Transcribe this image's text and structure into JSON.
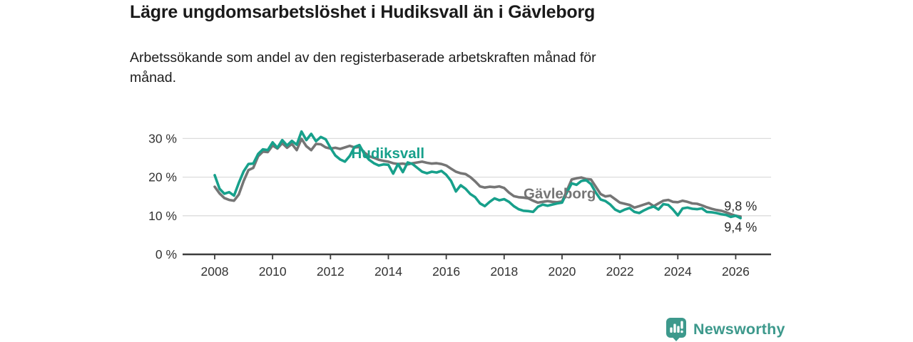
{
  "header": {
    "title": "Lägre ungdomsarbetslöshet i Hudiksvall än i Gävleborg",
    "subtitle_lines": [
      "Arbetssökande som andel av den registerbaserade arbetskraften månad för",
      "månad."
    ]
  },
  "footer": {
    "brand": "Newsworthy",
    "brand_color": "#3d998c",
    "logo_icon": "bar-chart-speech-bubble-icon"
  },
  "chart_data": {
    "type": "line",
    "title": "Lägre ungdomsarbetslöshet i Hudiksvall än i Gävleborg",
    "subtitle": "Arbetssökande som andel av den registerbaserade arbetskraften månad för månad.",
    "xlabel": "",
    "ylabel": "",
    "grid": "horizontal",
    "legend_position": "inline-labels",
    "x_start_year": 2008.0,
    "x_step_years": 0.166667,
    "xlim": [
      2006.9,
      2027.2
    ],
    "ylim": [
      0,
      33.5
    ],
    "x_ticks": [
      2008,
      2010,
      2012,
      2014,
      2016,
      2018,
      2020,
      2022,
      2024,
      2026
    ],
    "x_tick_labels": [
      "2008",
      "2010",
      "2012",
      "2014",
      "2016",
      "2018",
      "2020",
      "2022",
      "2024",
      "2026"
    ],
    "y_ticks": [
      0,
      10,
      20,
      30
    ],
    "y_tick_labels": [
      "0 %",
      "10 %",
      "20 %",
      "30 %"
    ],
    "series": [
      {
        "name": "Gävleborg",
        "color": "#757575",
        "last_value_label": "9,8 %",
        "values": [
          17.5,
          15.8,
          14.6,
          14.1,
          13.9,
          15.5,
          19.0,
          21.8,
          22.4,
          25.4,
          26.6,
          26.5,
          28.2,
          27.4,
          28.8,
          27.6,
          28.6,
          27.0,
          29.9,
          28.0,
          27.0,
          28.6,
          28.5,
          27.7,
          27.4,
          27.6,
          27.3,
          27.7,
          28.1,
          27.7,
          27.8,
          26.4,
          25.4,
          25.0,
          24.5,
          24.2,
          24.0,
          23.6,
          23.4,
          23.5,
          23.3,
          23.6,
          23.8,
          24.0,
          23.7,
          23.5,
          23.6,
          23.4,
          23.0,
          22.2,
          21.4,
          21.0,
          20.8,
          20.0,
          18.9,
          17.6,
          17.3,
          17.5,
          17.4,
          17.6,
          17.2,
          16.0,
          15.1,
          14.8,
          14.7,
          14.5,
          13.9,
          13.4,
          13.6,
          13.8,
          13.6,
          13.5,
          13.7,
          16.5,
          19.4,
          19.7,
          19.9,
          19.5,
          19.4,
          17.5,
          15.6,
          15.0,
          15.2,
          14.3,
          13.4,
          13.1,
          12.8,
          12.1,
          12.5,
          12.9,
          13.3,
          12.5,
          13.2,
          13.9,
          14.1,
          13.6,
          13.5,
          13.9,
          13.6,
          13.2,
          13.1,
          12.7,
          12.2,
          11.8,
          11.5,
          11.3,
          10.9,
          10.4,
          10.0,
          9.8
        ]
      },
      {
        "name": "Hudiksvall",
        "color": "#17a08b",
        "last_value_label": "9,4 %",
        "values": [
          20.5,
          17.0,
          15.7,
          16.1,
          15.2,
          18.5,
          21.5,
          23.4,
          23.5,
          26.0,
          27.2,
          27.0,
          29.0,
          27.6,
          29.6,
          28.2,
          29.4,
          28.4,
          31.8,
          29.6,
          31.2,
          29.3,
          30.4,
          29.8,
          27.6,
          25.6,
          24.6,
          24.0,
          25.5,
          27.8,
          28.3,
          26.0,
          24.5,
          23.6,
          23.0,
          23.3,
          23.2,
          20.9,
          23.4,
          21.3,
          23.8,
          23.4,
          22.4,
          21.4,
          21.0,
          21.4,
          21.2,
          21.6,
          20.6,
          19.0,
          16.3,
          17.9,
          17.0,
          15.6,
          14.8,
          13.2,
          12.5,
          13.6,
          14.5,
          14.0,
          14.3,
          13.6,
          12.5,
          11.7,
          11.3,
          11.2,
          11.0,
          12.3,
          12.9,
          12.6,
          12.9,
          13.2,
          13.4,
          16.0,
          18.4,
          18.0,
          19.0,
          19.2,
          18.2,
          16.0,
          14.2,
          13.8,
          12.9,
          11.6,
          11.0,
          11.6,
          12.0,
          11.0,
          10.7,
          11.4,
          12.0,
          12.4,
          11.6,
          13.0,
          12.8,
          11.6,
          10.1,
          11.9,
          12.1,
          11.8,
          11.7,
          11.9,
          11.0,
          10.9,
          10.7,
          10.4,
          10.2,
          9.7,
          10.0,
          9.4
        ]
      }
    ],
    "annotations": [
      {
        "text": "Hudiksvall",
        "x_year": 2012.72,
        "y_pct": 26.1,
        "color": "#17a08b",
        "kind": "series-label"
      },
      {
        "text": "Gävleborg",
        "x_year": 2018.67,
        "y_pct": 15.7,
        "color": "#757575",
        "kind": "series-label"
      },
      {
        "text": "9,8 %",
        "x_year": 2025.6,
        "y_pct": 12.5,
        "color": "#2b2b2b",
        "kind": "value-label"
      },
      {
        "text": "9,4 %",
        "x_year": 2025.6,
        "y_pct": 7.0,
        "color": "#2b2b2b",
        "kind": "value-label"
      }
    ]
  }
}
